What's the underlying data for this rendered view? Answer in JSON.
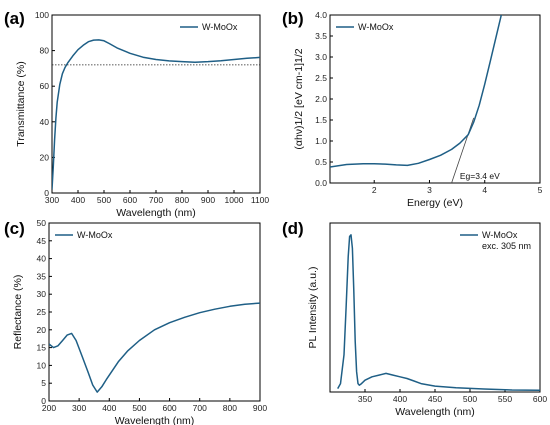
{
  "accent_color": "#1f5f86",
  "panels": [
    {
      "label": "(a)",
      "chart_data": {
        "type": "line",
        "xlabel": "Wavelength (nm)",
        "ylabel": "Transmittance (%)",
        "xlim": [
          300,
          1100
        ],
        "ylim": [
          0,
          100
        ],
        "xticks": [
          300,
          400,
          500,
          600,
          700,
          800,
          900,
          1000,
          1100
        ],
        "yticks": [
          0,
          20,
          40,
          60,
          80,
          100
        ],
        "series": [
          {
            "name": "W-MoOx",
            "x": [
              300,
              305,
              310,
              315,
              320,
              330,
              340,
              350,
              360,
              380,
              400,
              420,
              440,
              460,
              480,
              500,
              520,
              550,
              600,
              650,
              700,
              750,
              800,
              850,
              900,
              950,
              1000,
              1050,
              1100
            ],
            "y": [
              2,
              15,
              30,
              42,
              51,
              61,
              67,
              70.5,
              73,
              77,
              80.5,
              83,
              85,
              85.9,
              86,
              85.5,
              84,
              81.5,
              78.5,
              76.3,
              75,
              74.2,
              73.8,
              73.5,
              73.8,
              74.3,
              75,
              75.7,
              76.2
            ]
          }
        ],
        "reference_line": {
          "y": 72,
          "style": "dotted"
        },
        "legend": {
          "entries": [
            "W-MoOx"
          ],
          "placement": "top-right"
        }
      }
    },
    {
      "label": "(b)",
      "chart_data": {
        "type": "line",
        "xlabel": "Energy (eV)",
        "ylabel": "(αhν)1/2 [eV cm-1]1/2",
        "xlim": [
          1.2,
          5
        ],
        "ylim": [
          0,
          4
        ],
        "xticks": [
          2,
          3,
          4,
          5
        ],
        "yticks": [
          0.0,
          0.5,
          1.0,
          1.5,
          2.0,
          2.5,
          3.0,
          3.5,
          4.0
        ],
        "series": [
          {
            "name": "W-MoOx",
            "x": [
              1.2,
              1.5,
              1.8,
              2.0,
              2.2,
              2.4,
              2.6,
              2.8,
              3.0,
              3.2,
              3.4,
              3.55,
              3.7,
              3.8,
              3.9,
              4.0,
              4.1,
              4.2,
              4.3
            ],
            "y": [
              0.38,
              0.44,
              0.46,
              0.46,
              0.45,
              0.43,
              0.42,
              0.47,
              0.56,
              0.66,
              0.8,
              0.95,
              1.15,
              1.45,
              1.85,
              2.35,
              2.9,
              3.45,
              4.0
            ]
          }
        ],
        "fit_line": {
          "x": [
            3.4,
            3.8
          ],
          "y": [
            0,
            1.55
          ]
        },
        "annotation": "Eg=3.4 eV",
        "legend": {
          "entries": [
            "W-MoOx"
          ],
          "placement": "top-left"
        }
      }
    },
    {
      "label": "(c)",
      "chart_data": {
        "type": "line",
        "xlabel": "Wavelength (nm)",
        "ylabel": "Reflectance (%)",
        "xlim": [
          200,
          900
        ],
        "ylim": [
          0,
          50
        ],
        "xticks": [
          200,
          300,
          400,
          500,
          600,
          700,
          800,
          900
        ],
        "yticks": [
          0,
          5,
          10,
          15,
          20,
          25,
          30,
          35,
          40,
          45,
          50
        ],
        "series": [
          {
            "name": "W-MoOx",
            "x": [
              200,
              215,
              230,
              245,
              260,
              275,
              290,
              310,
              330,
              345,
              360,
              375,
              390,
              410,
              430,
              460,
              500,
              550,
              600,
              650,
              700,
              750,
              800,
              850,
              900
            ],
            "y": [
              16,
              15,
              15.5,
              17,
              18.5,
              19,
              17,
              12.5,
              8,
              4.5,
              2.5,
              4,
              6,
              8.5,
              11,
              14,
              17,
              20,
              22,
              23.5,
              24.8,
              25.8,
              26.6,
              27.2,
              27.5
            ]
          }
        ],
        "legend": {
          "entries": [
            "W-MoOx"
          ],
          "placement": "top-left"
        }
      }
    },
    {
      "label": "(d)",
      "chart_data": {
        "type": "line",
        "xlabel": "Wavelength (nm)",
        "ylabel": "PL Intensity (a.u.)",
        "xlim": [
          300,
          600
        ],
        "ylim": [
          0,
          1
        ],
        "xticks": [
          350,
          400,
          450,
          500,
          550,
          600
        ],
        "yticks": [],
        "series": [
          {
            "name": "W-MoOx",
            "x": [
              311,
              315,
              320,
              323,
              326,
              328,
              330,
              332,
              334,
              336,
              338,
              340,
              342,
              345,
              350,
              360,
              370,
              380,
              390,
              400,
              410,
              420,
              430,
              450,
              480,
              520,
              560,
              600
            ],
            "y": [
              0.02,
              0.05,
              0.22,
              0.5,
              0.8,
              0.92,
              0.93,
              0.85,
              0.6,
              0.3,
              0.12,
              0.05,
              0.04,
              0.05,
              0.07,
              0.09,
              0.1,
              0.11,
              0.1,
              0.09,
              0.08,
              0.065,
              0.05,
              0.035,
              0.025,
              0.018,
              0.012,
              0.01
            ]
          }
        ],
        "legend": {
          "entries": [
            "W-MoOx"
          ],
          "placement": "top-right",
          "note": "exc. 305 nm"
        }
      }
    }
  ]
}
